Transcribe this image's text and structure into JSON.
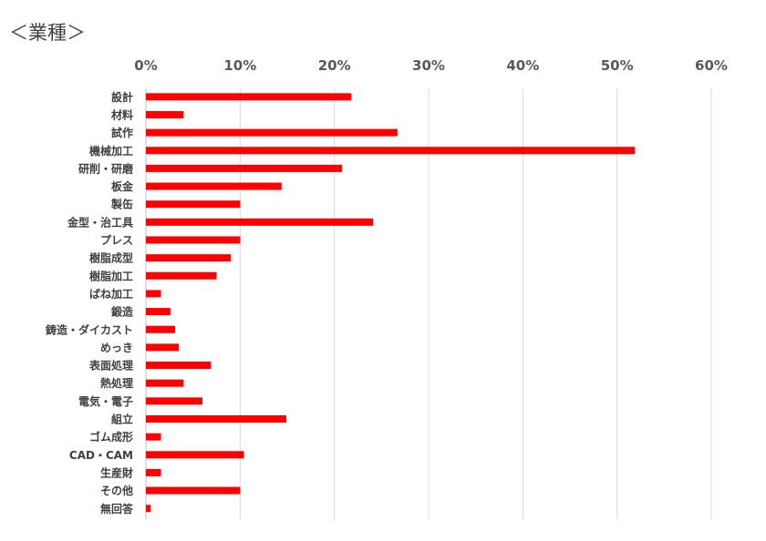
{
  "chart_data": {
    "type": "bar",
    "orientation": "horizontal",
    "title": "＜業種＞",
    "xlabel": "",
    "ylabel": "",
    "xlim": [
      0,
      60
    ],
    "xticks": [
      "0%",
      "10%",
      "20%",
      "30%",
      "40%",
      "50%",
      "60%"
    ],
    "grid": "vertical",
    "bar_color": "#ff0000",
    "categories": [
      "設計",
      "材料",
      "試作",
      "機械加工",
      "研削・研磨",
      "板金",
      "製缶",
      "金型・治工具",
      "プレス",
      "樹脂成型",
      "樹脂加工",
      "ばね加工",
      "鍛造",
      "鋳造・ダイカスト",
      "めっき",
      "表面処理",
      "熱処理",
      "電気・電子",
      "組立",
      "ゴム成形",
      "CAD・CAM",
      "生産財",
      "その他",
      "無回答"
    ],
    "values": [
      21.8,
      4.0,
      26.7,
      51.9,
      20.8,
      14.4,
      10.0,
      24.1,
      10.0,
      9.0,
      7.5,
      1.6,
      2.6,
      3.1,
      3.5,
      6.9,
      4.0,
      6.0,
      14.9,
      1.6,
      10.4,
      1.6,
      10.0,
      0.5
    ]
  }
}
